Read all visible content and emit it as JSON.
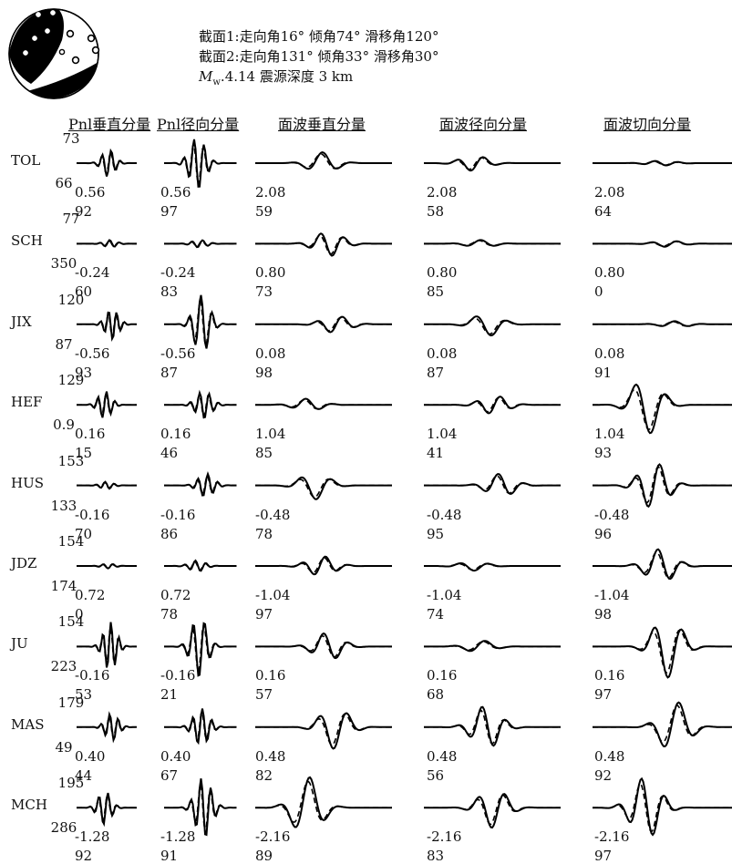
{
  "solution": {
    "plane1": "截面1:走向角16° 倾角74° 滑移角120°",
    "plane2": "截面2:走向角131° 倾角33° 滑移角30°",
    "mw_symbol": "M",
    "mw_sub": "w",
    "mw_rest": ".4.14 震源深度 3 km"
  },
  "columns": [
    "Pnl垂直分量",
    "Pnl径向分量",
    "面波垂直分量",
    "面波径向分量",
    "面波切向分量"
  ],
  "stations": [
    {
      "dist": "73",
      "name": "TOL",
      "az": "66",
      "shifts": [
        "0.56",
        "0.56",
        "2.08",
        "2.08",
        "2.08"
      ],
      "ccs": [
        "92",
        "97",
        "59",
        "58",
        "64"
      ]
    },
    {
      "dist": "77",
      "name": "SCH",
      "az": "350",
      "shifts": [
        "-0.24",
        "-0.24",
        "0.80",
        "0.80",
        "0.80"
      ],
      "ccs": [
        "60",
        "83",
        "73",
        "85",
        "0"
      ]
    },
    {
      "dist": "120",
      "name": "JIX",
      "az": "87",
      "shifts": [
        "-0.56",
        "-0.56",
        "0.08",
        "0.08",
        "0.08"
      ],
      "ccs": [
        "93",
        "87",
        "98",
        "87",
        "91"
      ]
    },
    {
      "dist": "129",
      "name": "HEF",
      "az": "0.9",
      "shifts": [
        "0.16",
        "0.16",
        "1.04",
        "1.04",
        "1.04"
      ],
      "ccs": [
        "15",
        "46",
        "85",
        "41",
        "93"
      ]
    },
    {
      "dist": "153",
      "name": "HUS",
      "az": "133",
      "shifts": [
        "-0.16",
        "-0.16",
        "-0.48",
        "-0.48",
        "-0.48"
      ],
      "ccs": [
        "70",
        "86",
        "78",
        "95",
        "96"
      ]
    },
    {
      "dist": "154",
      "name": "JDZ",
      "az": "174",
      "shifts": [
        "0.72",
        "0.72",
        "-1.04",
        "-1.04",
        "-1.04"
      ],
      "ccs": [
        "0",
        "78",
        "97",
        "74",
        "98"
      ]
    },
    {
      "dist": "154",
      "name": "JU",
      "az": "223",
      "shifts": [
        "-0.16",
        "-0.16",
        "0.16",
        "0.16",
        "0.16"
      ],
      "ccs": [
        "53",
        "21",
        "57",
        "68",
        "97"
      ]
    },
    {
      "dist": "179",
      "name": "MAS",
      "az": "49",
      "shifts": [
        "0.40",
        "0.40",
        "0.48",
        "0.48",
        "0.48"
      ],
      "ccs": [
        "44",
        "67",
        "82",
        "56",
        "92"
      ]
    },
    {
      "dist": "195",
      "name": "MCH",
      "az": "286",
      "shifts": [
        "-1.28",
        "-1.28",
        "-2.16",
        "-2.16",
        "-2.16"
      ],
      "ccs": [
        "92",
        "91",
        "89",
        "83",
        "97"
      ]
    }
  ],
  "waveform_amplitudes": [
    [
      0.45,
      0.85,
      0.35,
      0.25,
      0.08
    ],
    [
      0.12,
      0.12,
      0.4,
      0.12,
      0.1
    ],
    [
      0.5,
      0.95,
      0.28,
      0.38,
      0.1
    ],
    [
      0.45,
      0.45,
      0.2,
      0.3,
      0.95
    ],
    [
      0.12,
      0.38,
      0.45,
      0.38,
      0.75
    ],
    [
      0.08,
      0.18,
      0.32,
      0.15,
      0.55
    ],
    [
      0.8,
      1.0,
      0.45,
      0.2,
      1.0
    ],
    [
      0.45,
      0.6,
      0.7,
      0.7,
      0.85
    ],
    [
      0.55,
      1.0,
      1.0,
      0.65,
      1.0
    ]
  ]
}
